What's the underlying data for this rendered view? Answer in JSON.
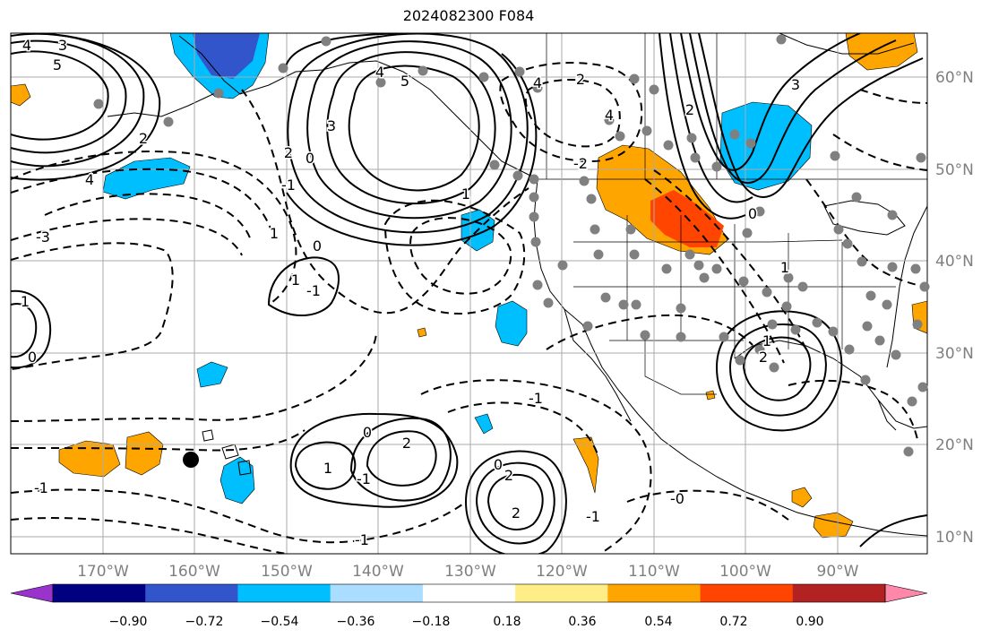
{
  "title": "2024082300 F084",
  "longitude_labels": [
    "170°W",
    "160°W",
    "150°W",
    "140°W",
    "130°W",
    "120°W",
    "110°W",
    "100°W",
    "90°W"
  ],
  "latitude_labels": [
    "60°N",
    "50°N",
    "40°N",
    "30°N",
    "20°N",
    "10°N"
  ],
  "colorbar": {
    "tick_labels": [
      "−0.90",
      "−0.72",
      "−0.54",
      "−0.36",
      "−0.18",
      "0.18",
      "0.36",
      "0.54",
      "0.72",
      "0.90"
    ],
    "colors": [
      "#9933cc",
      "#000080",
      "#3355cc",
      "#00bfff",
      "#aaddff",
      "#ffffff",
      "#ffee88",
      "#ffa500",
      "#ff4500",
      "#b22222",
      "#ff88aa"
    ]
  },
  "contour_labels": [
    "4",
    "3",
    "5",
    "4",
    "5",
    "3",
    "0",
    "2",
    "2",
    "4",
    "-3",
    "1",
    "0",
    "1",
    "-1",
    "0",
    "1",
    "2",
    "-1",
    "1",
    "-1",
    "2",
    "2",
    "-1",
    "-1",
    "0",
    "-0",
    "-1",
    "1",
    "0",
    "2",
    "4",
    "2",
    "3",
    "4",
    "-2",
    "2",
    "0",
    "1",
    "-1",
    "1"
  ],
  "fill_colors": {
    "orange": "#ffa500",
    "red_orange": "#ff4500",
    "light_blue": "#00bfff",
    "medium_blue": "#3355cc"
  },
  "station_dot_color": "#808080"
}
